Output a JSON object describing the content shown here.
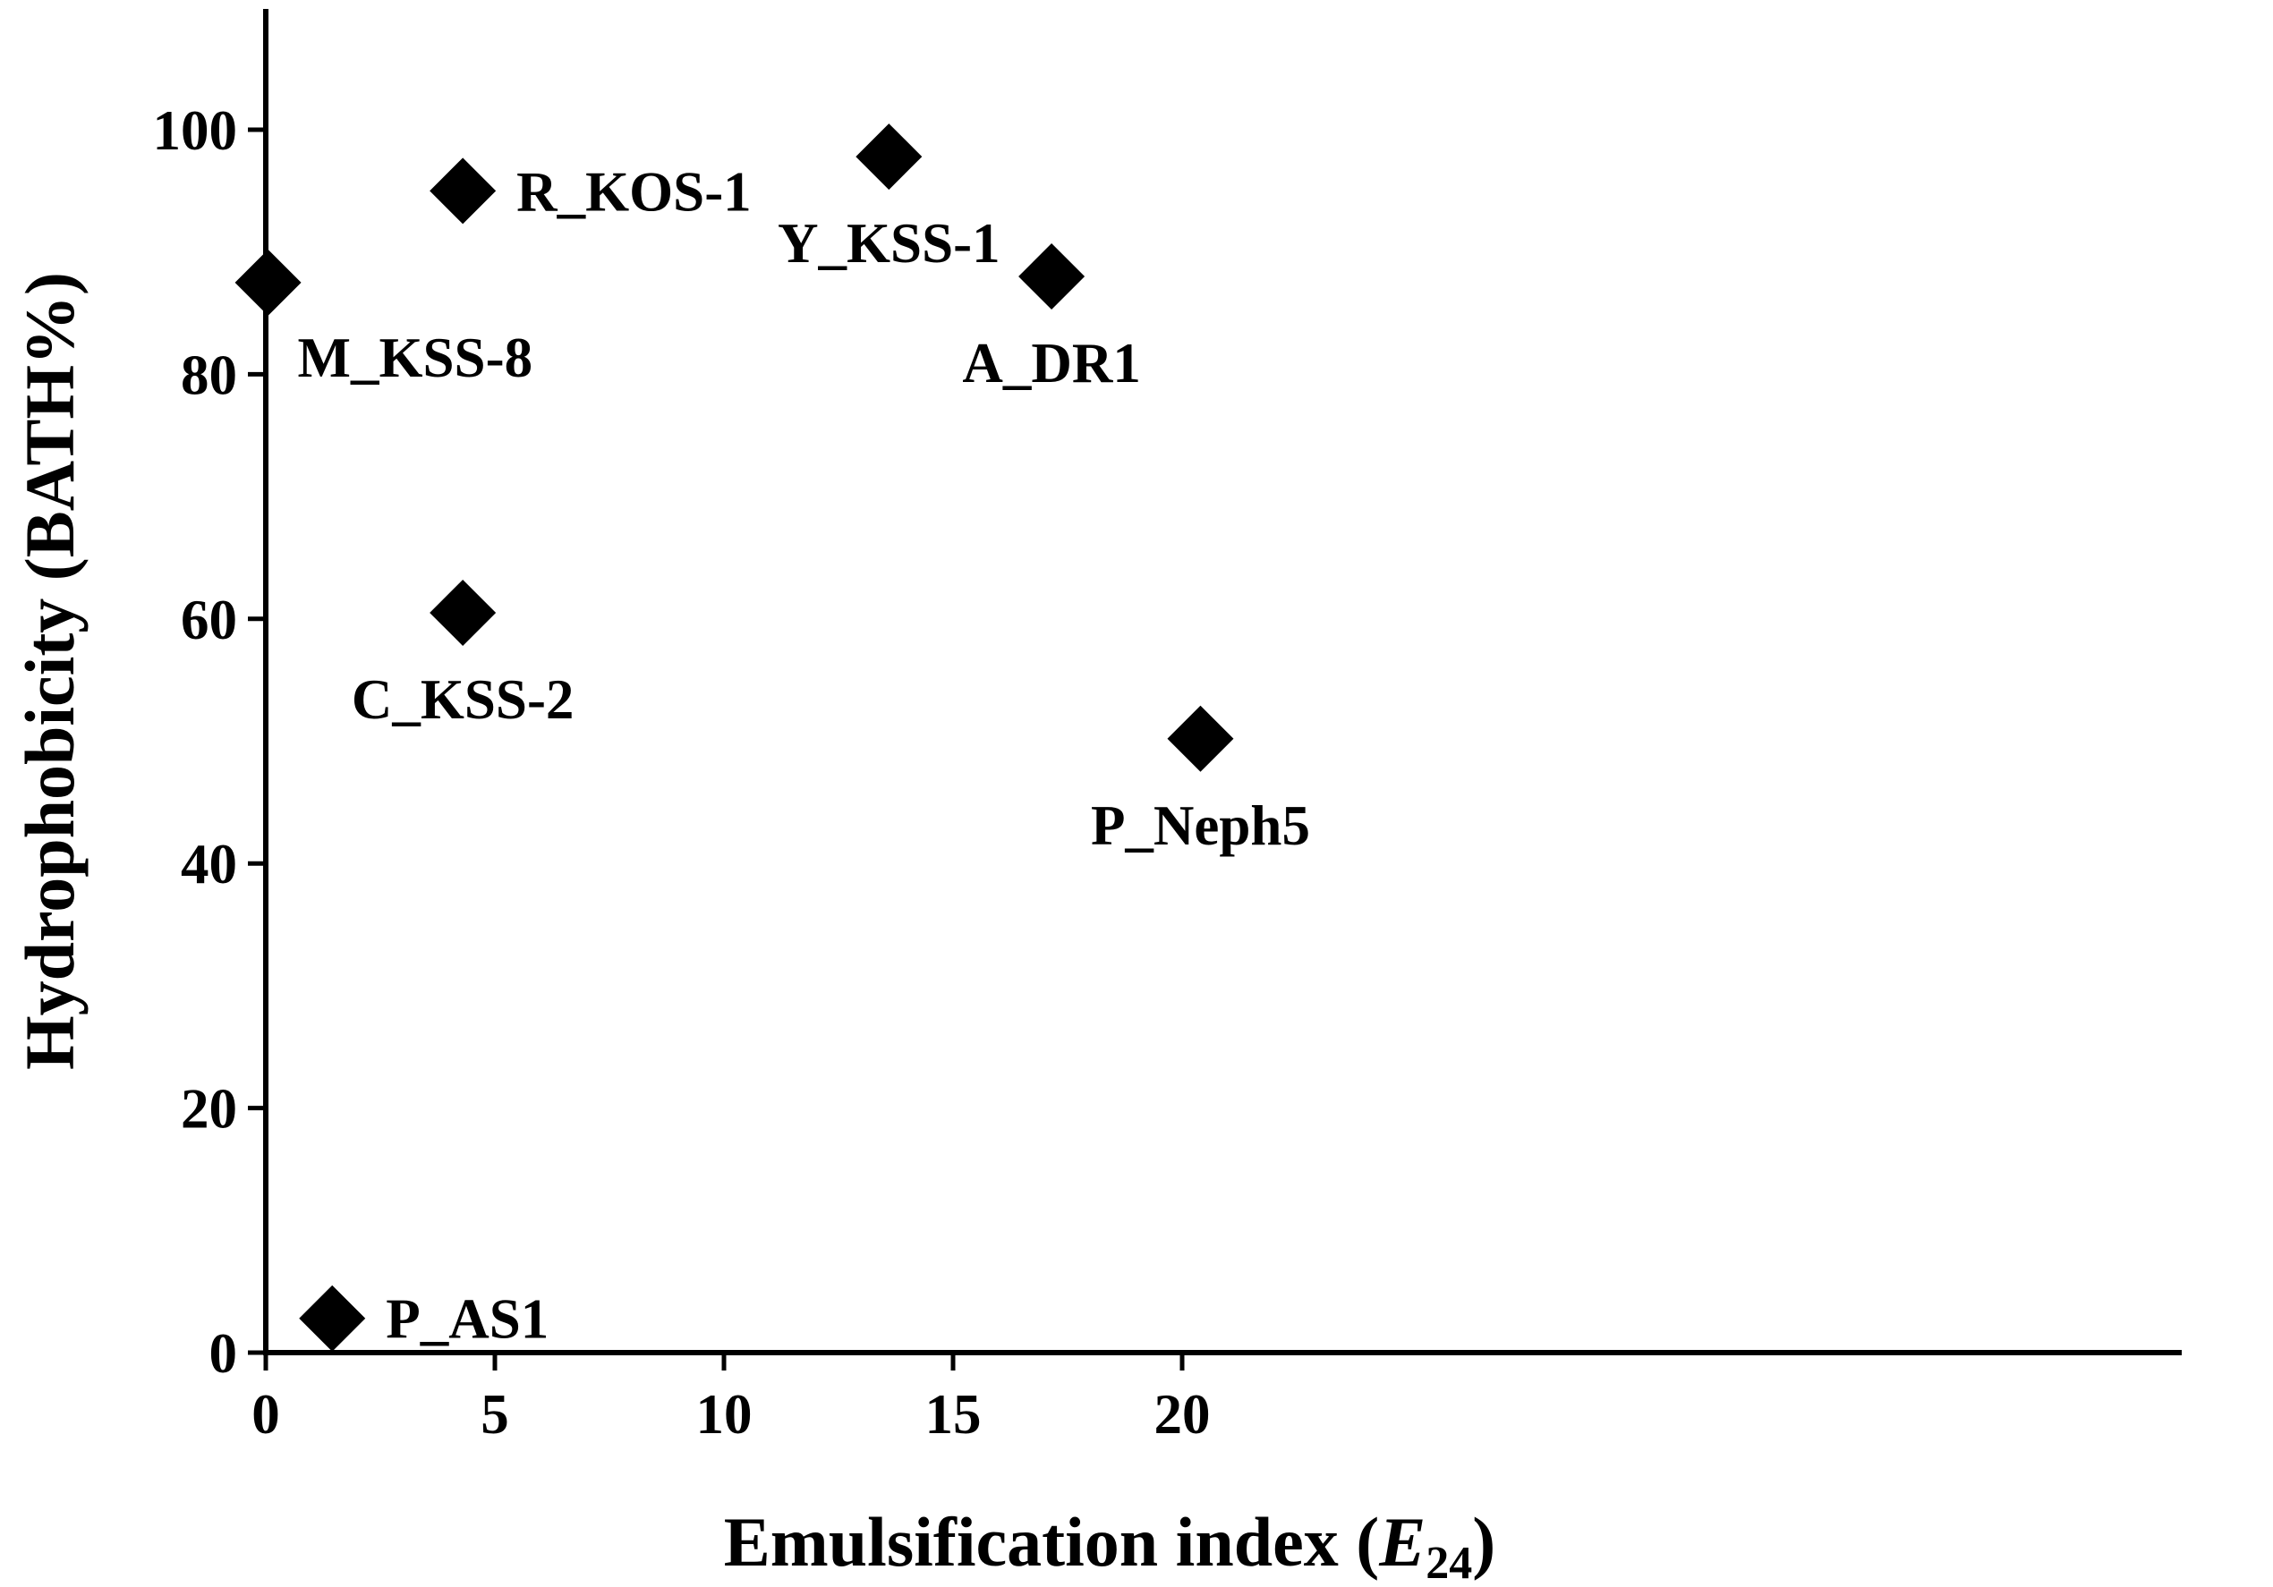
{
  "chart_data": {
    "type": "scatter",
    "title": "",
    "xlabel": "Emulsification index (",
    "xlabel_italic": "E",
    "xlabel_sub": "24",
    "xlabel_close": ")",
    "ylabel": "Hydrophobicity (BATH%)",
    "xlim": [
      0,
      21
    ],
    "ylim": [
      0,
      110
    ],
    "xticks": [
      0,
      5,
      10,
      15,
      20
    ],
    "yticks": [
      0,
      20,
      40,
      60,
      80,
      100
    ],
    "grid": false,
    "legend": "none",
    "marker": "diamond",
    "marker_color": "#000000",
    "points": [
      {
        "label": "M_KSS-8",
        "x": 0.05,
        "y": 87.5,
        "label_pos": "below-right"
      },
      {
        "label": "R_KOS-1",
        "x": 4.3,
        "y": 95.0,
        "label_pos": "right"
      },
      {
        "label": "C_KSS-2",
        "x": 4.3,
        "y": 60.5,
        "label_pos": "below"
      },
      {
        "label": "P_AS1",
        "x": 1.45,
        "y": 2.8,
        "label_pos": "right"
      },
      {
        "label": "Y_KSS-1",
        "x": 13.6,
        "y": 97.8,
        "label_pos": "below"
      },
      {
        "label": "A_DR1",
        "x": 17.15,
        "y": 88.0,
        "label_pos": "below"
      },
      {
        "label": "P_Neph5",
        "x": 20.4,
        "y": 50.2,
        "label_pos": "below"
      }
    ]
  }
}
